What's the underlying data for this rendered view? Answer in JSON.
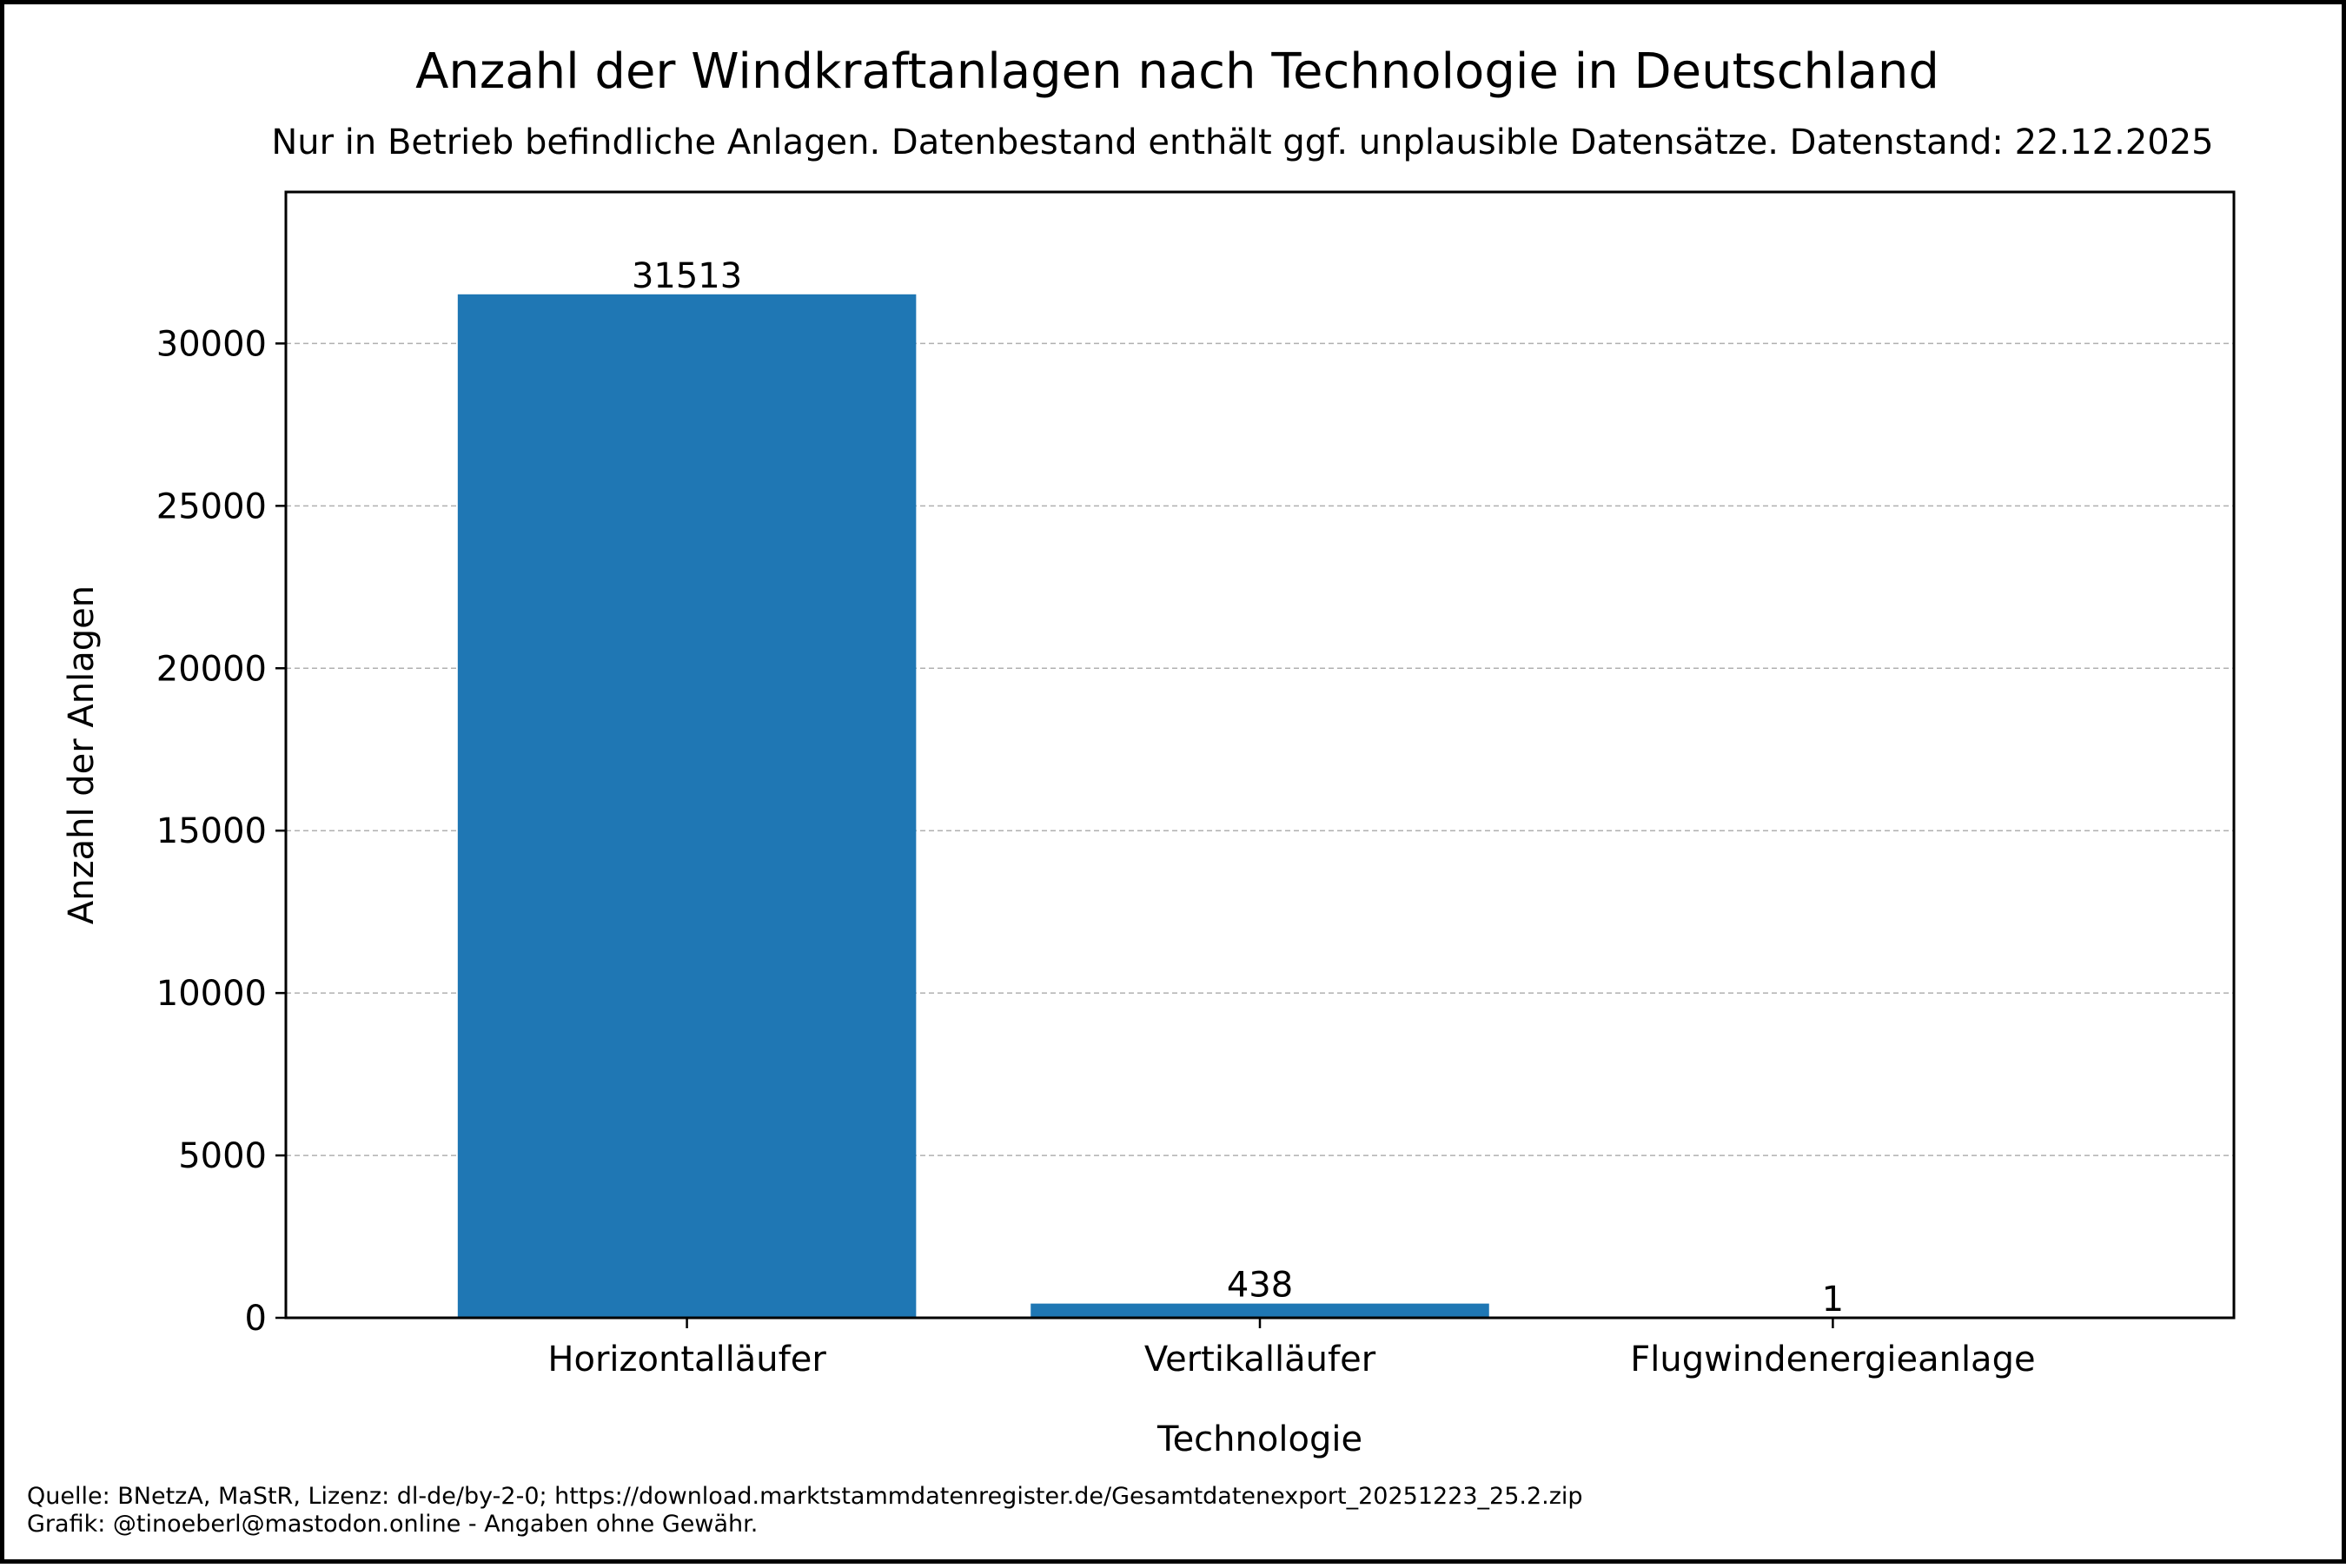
{
  "chart_data": {
    "type": "bar",
    "title": "Anzahl der Windkraftanlagen nach Technologie in Deutschland",
    "subtitle": "Nur in Betrieb befindliche Anlagen. Datenbestand enthält ggf. unplausible Datensätze. Datenstand: 22.12.2025",
    "xlabel": "Technologie",
    "ylabel": "Anzahl der Anlagen",
    "categories": [
      "Horizontalläufer",
      "Vertikalläufer",
      "Flugwindenergieanlage"
    ],
    "values": [
      31513,
      438,
      1
    ],
    "data_labels": [
      "31513",
      "438",
      "1"
    ],
    "ylim": [
      0,
      34664
    ],
    "yticks": [
      0,
      5000,
      10000,
      15000,
      20000,
      25000,
      30000
    ],
    "ytick_labels": [
      "0",
      "5000",
      "10000",
      "15000",
      "20000",
      "25000",
      "30000"
    ],
    "grid": "horizontal dashed",
    "bar_color": "#1f77b4",
    "grid_color": "#b0b0b0"
  },
  "footer": {
    "source": "Quelle: BNetzA, MaStR, Lizenz: dl-de/by-2-0; https://download.marktstammdatenregister.de/Gesamtdatenexport_20251223_25.2.zip",
    "credit": "Grafik: @tinoeberl@mastodon.online - Angaben ohne Gewähr."
  }
}
